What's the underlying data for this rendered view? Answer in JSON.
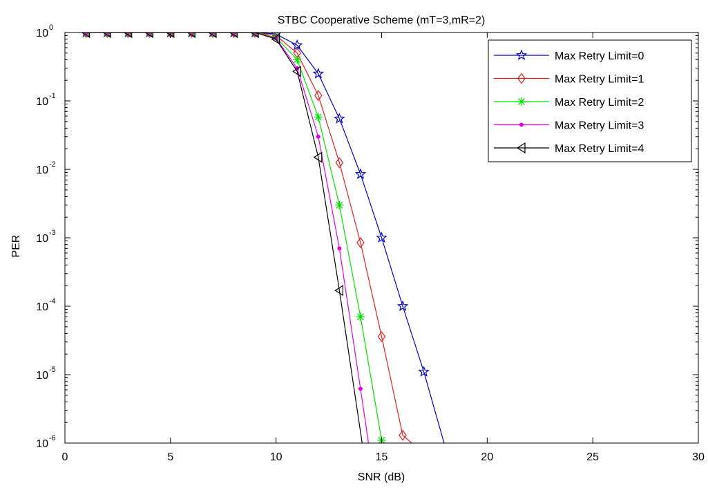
{
  "chart_data": {
    "type": "line",
    "title": "STBC Cooperative Scheme (mT=3,mR=2)",
    "xlabel": "SNR (dB)",
    "ylabel": "PER",
    "xlim": [
      0,
      30
    ],
    "ylim": [
      1e-06,
      1
    ],
    "yscale": "log",
    "grid": false,
    "legend_position": "top-right",
    "x_ticks": [
      {
        "value": 0,
        "label": "0"
      },
      {
        "value": 5,
        "label": "5"
      },
      {
        "value": 10,
        "label": "10"
      },
      {
        "value": 15,
        "label": "15"
      },
      {
        "value": 20,
        "label": "20"
      },
      {
        "value": 25,
        "label": "25"
      },
      {
        "value": 30,
        "label": "30"
      }
    ],
    "y_ticks": [
      {
        "value": 1,
        "base": "10",
        "exp": "0"
      },
      {
        "value": 0.1,
        "base": "10",
        "exp": "-1"
      },
      {
        "value": 0.01,
        "base": "10",
        "exp": "-2"
      },
      {
        "value": 0.001,
        "base": "10",
        "exp": "-3"
      },
      {
        "value": 0.0001,
        "base": "10",
        "exp": "-4"
      },
      {
        "value": 1e-05,
        "base": "10",
        "exp": "-5"
      },
      {
        "value": 1e-06,
        "base": "10",
        "exp": "-6"
      }
    ],
    "series": [
      {
        "name": "Max Retry Limit=0",
        "color": "#0000c8",
        "marker": "pentagram",
        "x": [
          1,
          2,
          3,
          4,
          5,
          6,
          7,
          8,
          9,
          10,
          11,
          12,
          13,
          14,
          15,
          16,
          17,
          18
        ],
        "y": [
          1,
          1,
          1,
          1,
          1,
          1,
          1,
          1,
          1,
          0.95,
          0.65,
          0.25,
          0.055,
          0.0085,
          0.001,
          0.0001,
          1.1e-05,
          9e-07
        ]
      },
      {
        "name": "Max Retry Limit=1",
        "color": "#e02020",
        "marker": "diamond",
        "x": [
          1,
          2,
          3,
          4,
          5,
          6,
          7,
          8,
          9,
          10,
          11,
          12,
          13,
          14,
          15,
          16,
          16.6
        ],
        "y": [
          1,
          1,
          1,
          1,
          1,
          1,
          1,
          1,
          1,
          0.9,
          0.5,
          0.12,
          0.0125,
          0.00085,
          3.6e-05,
          1.3e-06,
          9e-07
        ]
      },
      {
        "name": "Max Retry Limit=2",
        "color": "#00e000",
        "marker": "asterisk",
        "x": [
          1,
          2,
          3,
          4,
          5,
          6,
          7,
          8,
          9,
          10,
          11,
          12,
          13,
          14,
          15,
          15.3
        ],
        "y": [
          1,
          1,
          1,
          1,
          1,
          1,
          1,
          1,
          1,
          0.85,
          0.4,
          0.058,
          0.003,
          7e-05,
          1.1e-06,
          9e-07
        ]
      },
      {
        "name": "Max Retry Limit=3",
        "color": "#e000e0",
        "marker": "point",
        "x": [
          1,
          2,
          3,
          4,
          5,
          6,
          7,
          8,
          9,
          10,
          11,
          12,
          13,
          14,
          14.4
        ],
        "y": [
          1,
          1,
          1,
          1,
          1,
          1,
          1,
          1,
          1,
          0.82,
          0.3,
          0.03,
          0.0007,
          6.2e-06,
          9e-07
        ]
      },
      {
        "name": "Max Retry Limit=4",
        "color": "#000000",
        "marker": "triangle-left",
        "x": [
          1,
          2,
          3,
          4,
          5,
          6,
          7,
          8,
          9,
          10,
          11,
          12,
          13,
          14.1
        ],
        "y": [
          1,
          1,
          1,
          1,
          1,
          1,
          1,
          1,
          1,
          0.8,
          0.27,
          0.015,
          0.00017,
          9e-07
        ]
      }
    ]
  }
}
